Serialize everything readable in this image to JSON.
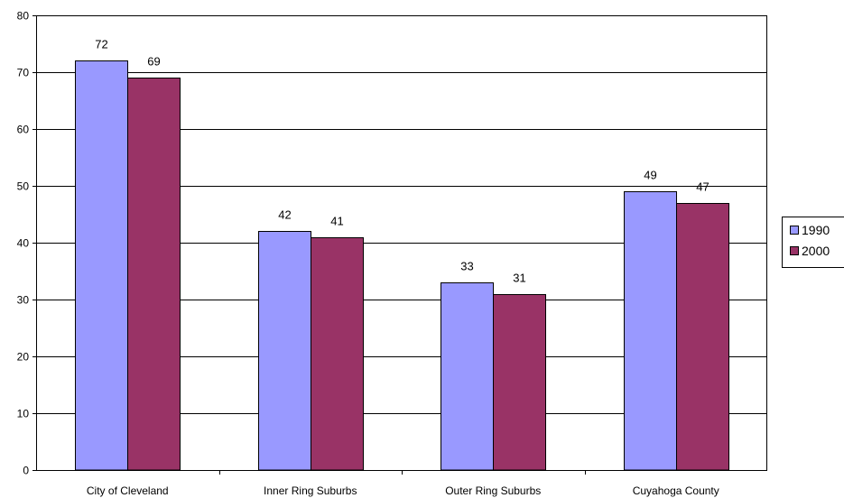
{
  "chart_data": {
    "type": "bar",
    "categories": [
      "City of Cleveland",
      "Inner Ring Suburbs",
      "Outer Ring Suburbs",
      "Cuyahoga County"
    ],
    "series": [
      {
        "name": "1990",
        "values": [
          72,
          42,
          33,
          49
        ],
        "color": "#9999ff"
      },
      {
        "name": "2000",
        "values": [
          69,
          41,
          31,
          47
        ],
        "color": "#993366"
      }
    ],
    "ylim": [
      0,
      80
    ],
    "yticks": [
      0,
      10,
      20,
      30,
      40,
      50,
      60,
      70,
      80
    ],
    "grid": true,
    "legend_position": "right",
    "data_labels": true
  }
}
